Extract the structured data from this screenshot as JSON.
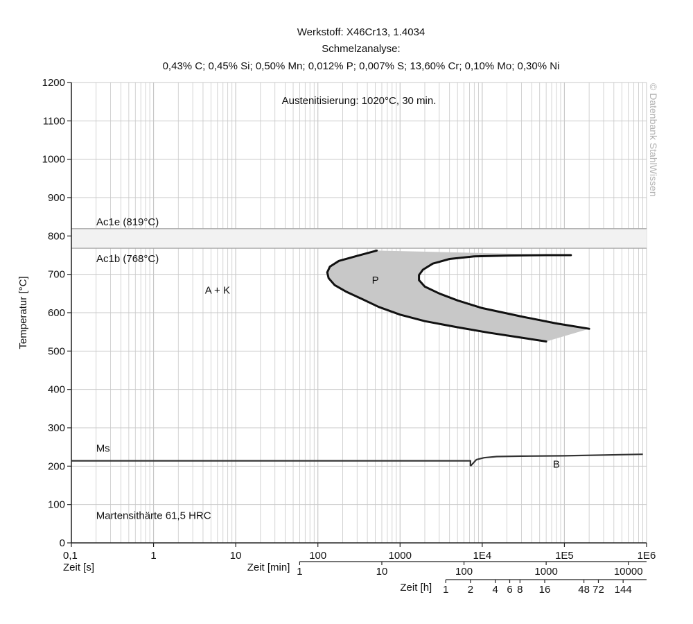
{
  "chart_data": {
    "type": "line",
    "title_lines": [
      "Werkstoff: X46Cr13, 1.4034",
      "Schmelzanalyse:",
      "0,43% C; 0,45% Si; 0,50% Mn; 0,012% P; 0,007% S; 13,60% Cr; 0,10% Mo; 0,30% Ni"
    ],
    "austenitization": "Austenitisierung: 1020°C, 30 min.",
    "ylabel": "Temperatur [°C]",
    "ylim": [
      0,
      1200
    ],
    "yticks": [
      "0",
      "100",
      "200",
      "300",
      "400",
      "500",
      "600",
      "700",
      "800",
      "900",
      "1000",
      "1100",
      "1200"
    ],
    "y_tick_values": [
      0,
      100,
      200,
      300,
      400,
      500,
      600,
      700,
      800,
      900,
      1000,
      1100,
      1200
    ],
    "xlim_seconds": [
      0.1,
      1000000
    ],
    "x_scale": "log",
    "axis_seconds": {
      "label": "Zeit [s]",
      "ticks": [
        {
          "label": "0,1",
          "value": 0.1
        },
        {
          "label": "1",
          "value": 1
        },
        {
          "label": "10",
          "value": 10
        },
        {
          "label": "100",
          "value": 100
        },
        {
          "label": "1000",
          "value": 1000
        },
        {
          "label": "1E4",
          "value": 10000
        },
        {
          "label": "1E5",
          "value": 100000
        },
        {
          "label": "1E6",
          "value": 1000000
        }
      ]
    },
    "axis_minutes": {
      "label": "Zeit [min]",
      "ticks": [
        {
          "label": "1",
          "value": 1
        },
        {
          "label": "10",
          "value": 10
        },
        {
          "label": "100",
          "value": 100
        },
        {
          "label": "1000",
          "value": 1000
        },
        {
          "label": "10000",
          "value": 10000
        }
      ]
    },
    "axis_hours": {
      "label": "Zeit [h]",
      "ticks": [
        {
          "label": "1",
          "value": 1
        },
        {
          "label": "2",
          "value": 2
        },
        {
          "label": "4",
          "value": 4
        },
        {
          "label": "6",
          "value": 6
        },
        {
          "label": "8",
          "value": 8
        },
        {
          "label": "16",
          "value": 16
        },
        {
          "label": "48",
          "value": 48
        },
        {
          "label": "72",
          "value": 72
        },
        {
          "label": "144",
          "value": 144
        }
      ]
    },
    "ac_lines": [
      {
        "label": "Ac1e (819°C)",
        "value": 819
      },
      {
        "label": "Ac1b (768°C)",
        "value": 768
      }
    ],
    "region_labels": [
      {
        "text": "A + K",
        "x": 6,
        "y": 650
      },
      {
        "text": "P",
        "x": 500,
        "y": 676
      },
      {
        "text": "B",
        "x": 80000,
        "y": 196
      },
      {
        "text": "Ms",
        "x": 0.2,
        "y": 238
      },
      {
        "text": "Martensithärte 61,5 HRC",
        "x": 0.2,
        "y": 62
      }
    ],
    "pearlite_start": {
      "name": "P",
      "x": [
        520,
        300,
        180,
        140,
        130,
        135,
        160,
        220,
        350,
        550,
        1000,
        2000,
        5000,
        12000,
        30000,
        60000
      ],
      "y": [
        762,
        748,
        735,
        720,
        705,
        690,
        672,
        655,
        635,
        615,
        595,
        578,
        562,
        548,
        535,
        525
      ]
    },
    "pearlite_end": {
      "name": "P",
      "x": [
        120000,
        60000,
        20000,
        8000,
        4000,
        2500,
        1900,
        1700,
        1700,
        2000,
        3000,
        5000,
        10000,
        30000,
        80000,
        200000
      ],
      "y": [
        750,
        750,
        749,
        747,
        740,
        728,
        712,
        698,
        685,
        668,
        650,
        632,
        612,
        590,
        572,
        558
      ]
    },
    "ms_line": {
      "name": "Ms",
      "x": [
        0.1,
        7200,
        7200
      ],
      "y": [
        214,
        214,
        200
      ]
    },
    "bainite_line": {
      "name": "B",
      "x": [
        7200,
        8500,
        10500,
        15000,
        30000,
        100000,
        300000,
        900000
      ],
      "y": [
        200,
        217,
        222,
        225,
        226,
        227,
        229,
        231
      ]
    },
    "watermark": "© Datenbank StahlWissen",
    "colors": {
      "grid": "#c8c8c8",
      "curve": "#111111",
      "fill": "#c8c8c8",
      "ac_band": "#f2f2f2"
    }
  }
}
